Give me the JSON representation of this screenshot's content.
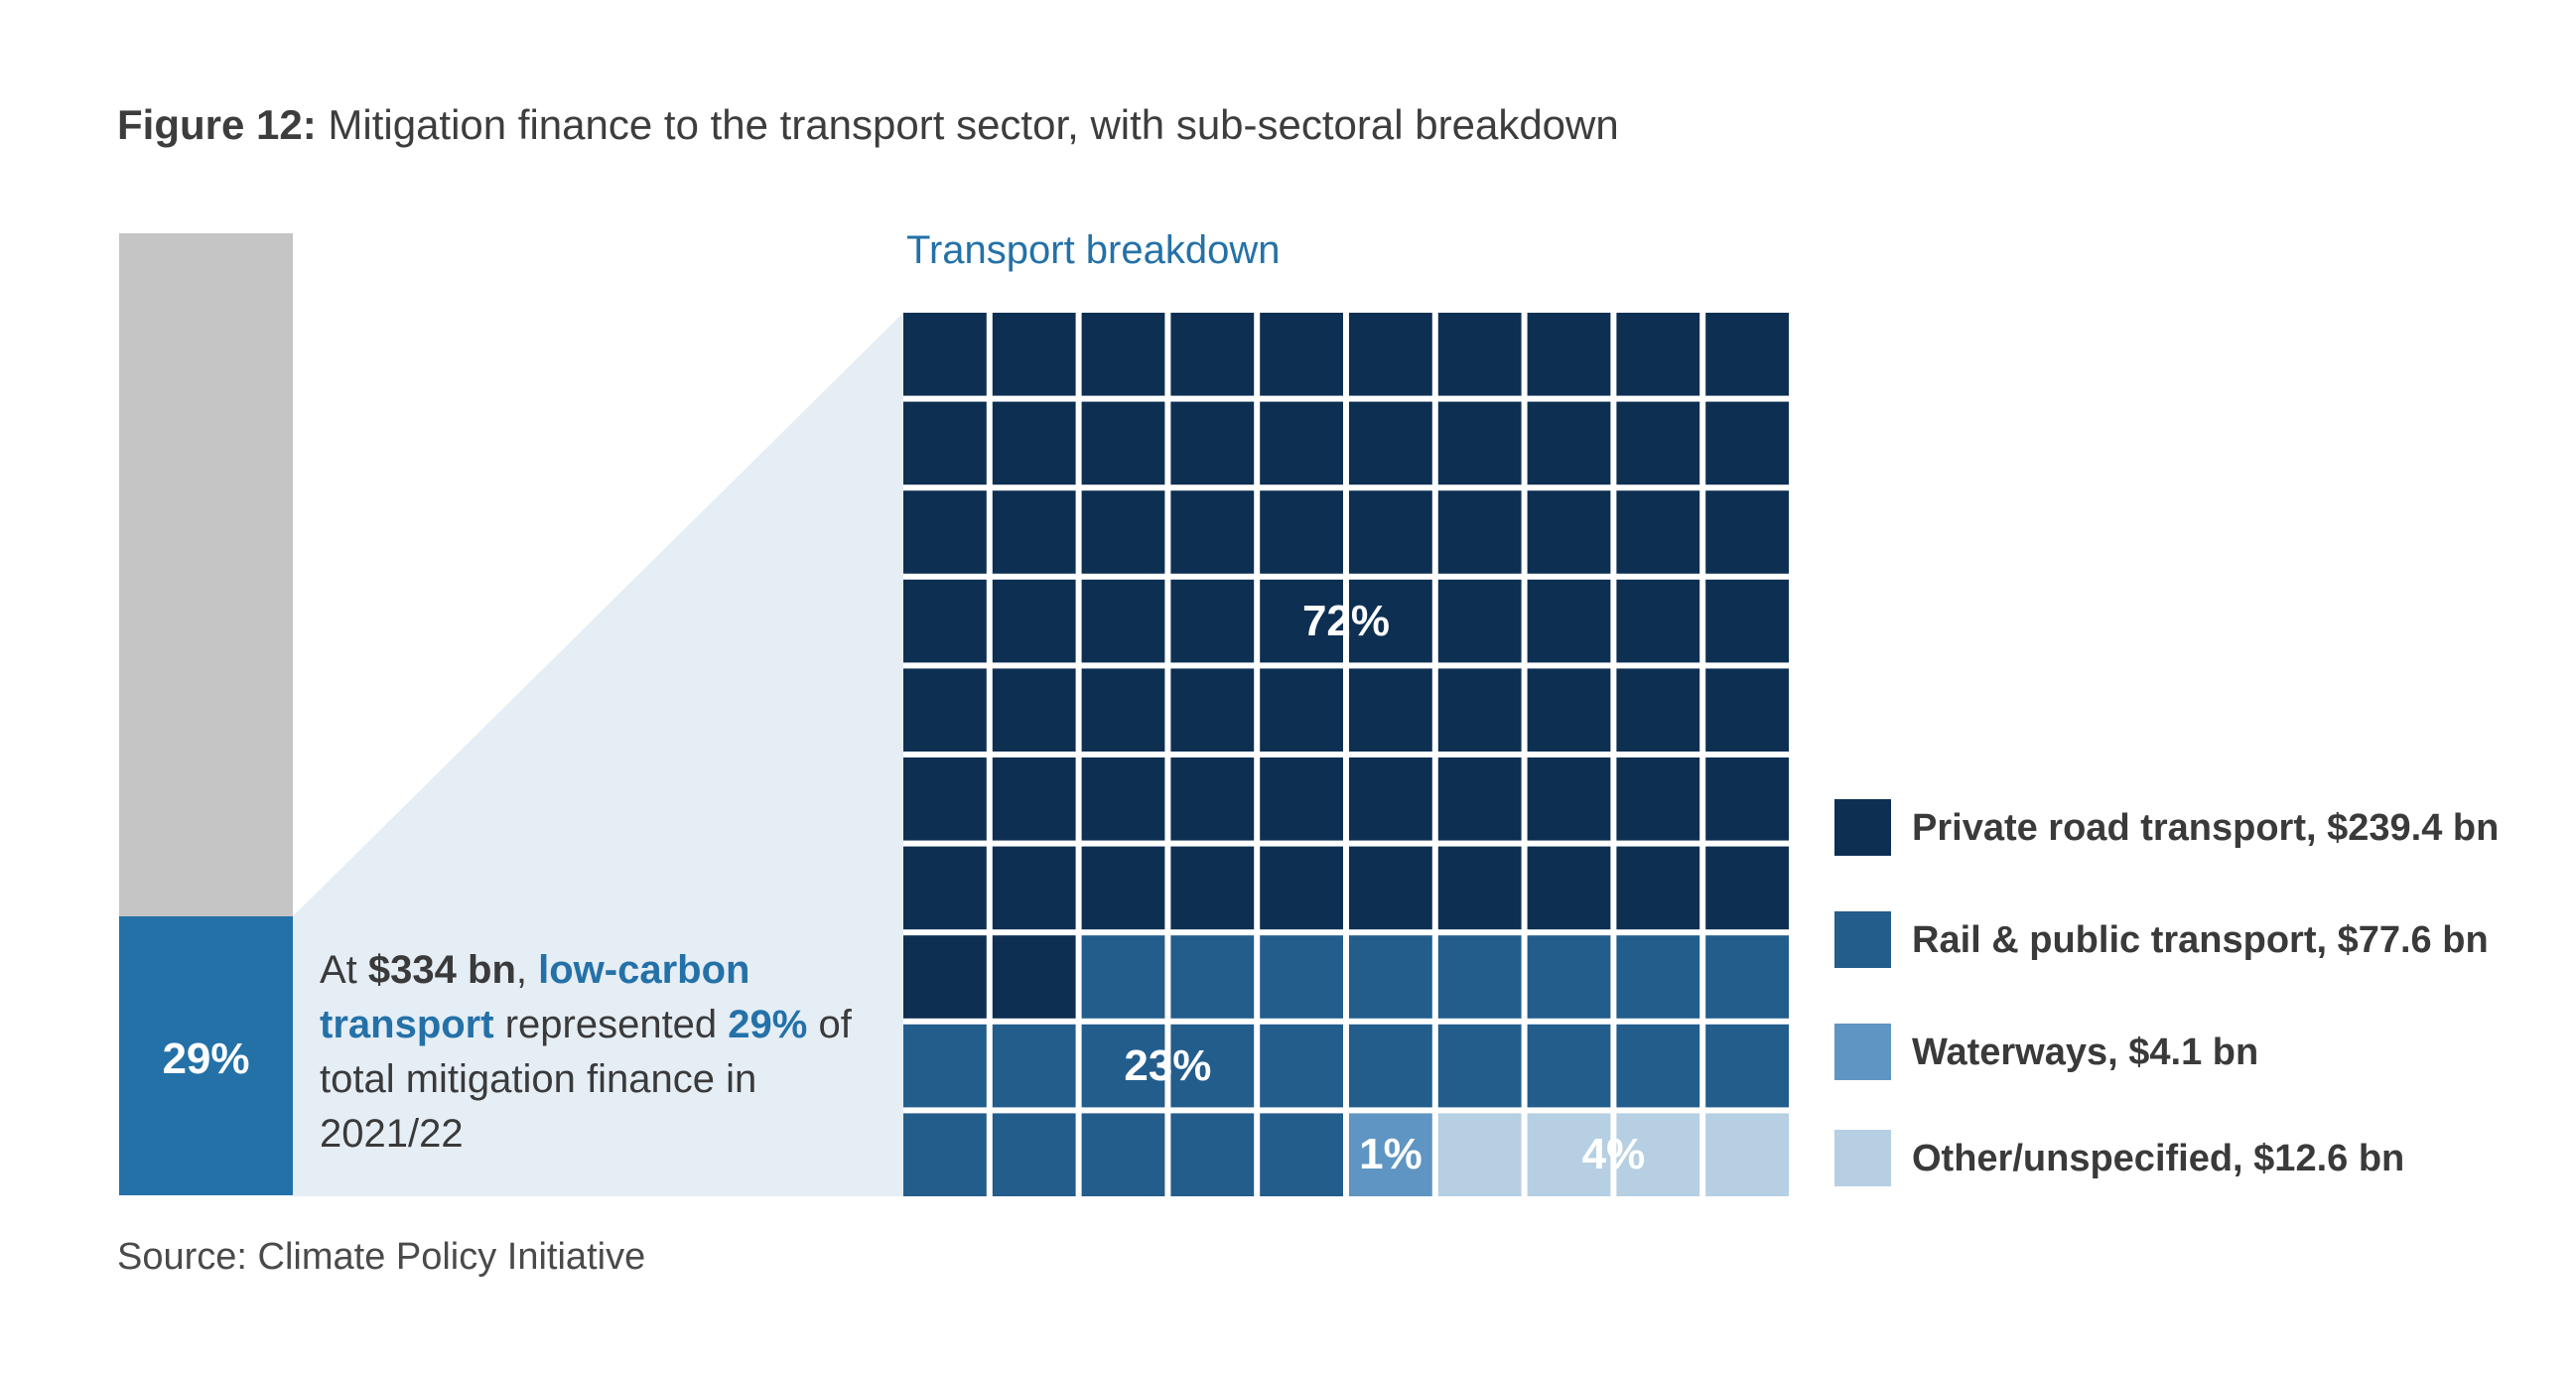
{
  "title": {
    "prefix": "Figure 12:",
    "text": "Mitigation finance to the transport sector, with sub-sectoral breakdown"
  },
  "subtitle": "Transport breakdown",
  "share_bar": {
    "share_percent": 29,
    "label": "29%",
    "colors": {
      "rest": "#c6c5c6",
      "share": "#2471a8"
    }
  },
  "callout": {
    "p1": "At ",
    "amount": "$334 bn",
    "p2": ", ",
    "highlight": "low-carbon transport",
    "p3": " represented ",
    "pct": "29%",
    "p4": " of total mitigation finance in 2021/22"
  },
  "chart_data": {
    "type": "waffle",
    "grid": {
      "rows": 10,
      "cols": 10
    },
    "categories": [
      "Private road transport",
      "Rail & public transport",
      "Waterways",
      "Other/unspecified"
    ],
    "series": [
      {
        "name": "Private road transport",
        "value_bn": 239.4,
        "percent": 72,
        "percent_label": "72%",
        "legend_label": "Private road transport, $239.4 bn",
        "color": "#0d2f52"
      },
      {
        "name": "Rail & public transport",
        "value_bn": 77.6,
        "percent": 23,
        "percent_label": "23%",
        "legend_label": "Rail & public transport, $77.6 bn",
        "color": "#235d8c"
      },
      {
        "name": "Waterways",
        "value_bn": 4.1,
        "percent": 1,
        "percent_label": "1%",
        "legend_label": "Waterways,  $4.1 bn",
        "color": "#5f95c2"
      },
      {
        "name": "Other/unspecified",
        "value_bn": 12.6,
        "percent": 4,
        "percent_label": "4%",
        "legend_label": "Other/unspecified, $12.6 bn",
        "color": "#b6cfe2"
      }
    ],
    "legend_position": "right"
  },
  "connector_color": "#e5edf5",
  "source": "Source: Climate Policy Initiative"
}
